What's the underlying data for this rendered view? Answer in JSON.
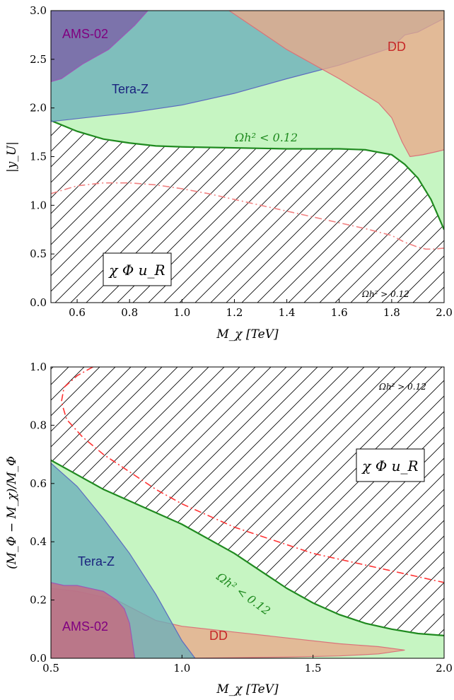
{
  "chart_data": [
    {
      "type": "area",
      "xlabel": "M_χ [TeV]",
      "ylabel": "|y_U|",
      "xlim": [
        0.5,
        2.0
      ],
      "ylim": [
        0.0,
        3.0
      ],
      "xticks": [
        "0.6",
        "0.8",
        "1.0",
        "1.2",
        "1.4",
        "1.6",
        "1.8",
        "2.0"
      ],
      "yticks": [
        "0.0",
        "0.5",
        "1.0",
        "1.5",
        "2.0",
        "2.5",
        "3.0"
      ],
      "model_label": "χ Φ u_R",
      "regions": [
        {
          "name": "AMS-02",
          "color": "#7b5ea7",
          "text_color": "#800080",
          "boundary": {
            "x": [
              0.5,
              0.54,
              0.62,
              0.72,
              0.82,
              0.87
            ],
            "y": [
              2.27,
              2.3,
              2.45,
              2.6,
              2.85,
              3.0
            ]
          }
        },
        {
          "name": "Tera-Z",
          "color": "#6aaeba",
          "text_color": "#1a237e",
          "boundary": {
            "x": [
              0.5,
              0.8,
              1.0,
              1.2,
              1.4,
              1.6,
              1.8,
              1.85,
              1.9,
              1.95,
              2.0
            ],
            "y": [
              1.86,
              1.95,
              2.03,
              2.15,
              2.3,
              2.44,
              2.62,
              2.75,
              2.78,
              2.85,
              2.92
            ]
          }
        },
        {
          "name": "DD",
          "color": "#e9a98a",
          "text_color": "#c62828",
          "boundary": {
            "x": [
              1.18,
              1.4,
              1.6,
              1.75,
              1.8,
              1.84,
              1.87,
              1.92,
              1.97,
              2.0
            ],
            "y": [
              3.0,
              2.6,
              2.3,
              2.05,
              1.9,
              1.65,
              1.5,
              1.52,
              1.55,
              1.57
            ]
          }
        },
        {
          "name": "relic",
          "color": "#c6f5c2",
          "boundary": {
            "x": [
              0.5,
              0.6,
              0.7,
              0.8,
              0.9,
              1.0,
              1.2,
              1.4,
              1.6,
              1.7,
              1.8,
              1.85,
              1.9,
              1.95,
              2.0
            ],
            "y": [
              1.87,
              1.76,
              1.68,
              1.64,
              1.61,
              1.6,
              1.59,
              1.58,
              1.58,
              1.57,
              1.52,
              1.42,
              1.28,
              1.06,
              0.75
            ]
          }
        }
      ],
      "curve": {
        "name": "dash-dot",
        "color": "#f08080",
        "x": [
          0.5,
          0.6,
          0.7,
          0.8,
          0.9,
          1.0,
          1.1,
          1.2,
          1.3,
          1.4,
          1.5,
          1.6,
          1.7,
          1.8,
          1.85,
          1.9,
          1.93,
          1.96,
          2.0
        ],
        "y": [
          1.12,
          1.2,
          1.23,
          1.23,
          1.21,
          1.17,
          1.12,
          1.06,
          1.0,
          0.94,
          0.88,
          0.82,
          0.76,
          0.69,
          0.62,
          0.57,
          0.55,
          0.55,
          0.56
        ]
      },
      "annotations": {
        "relic_lt": "Ωh² < 0.12",
        "relic_gt": "Ωh² > 0.12"
      }
    },
    {
      "type": "area",
      "xlabel": "M_χ [TeV]",
      "ylabel": "(M_Φ − M_χ)/M_Φ",
      "xlim": [
        0.5,
        2.0
      ],
      "ylim": [
        0.0,
        1.0
      ],
      "xticks": [
        "0.5",
        "1.0",
        "1.5",
        "2.0"
      ],
      "yticks": [
        "0.0",
        "0.2",
        "0.4",
        "0.6",
        "0.8",
        "1.0"
      ],
      "model_label": "χ Φ u_R",
      "regions": [
        {
          "name": "AMS-02",
          "color": "#c9667e",
          "text_color": "#800080",
          "boundary": {
            "x": [
              0.5,
              0.55,
              0.6,
              0.7,
              0.75,
              0.78,
              0.8,
              0.81,
              0.82
            ],
            "y": [
              0.26,
              0.25,
              0.25,
              0.23,
              0.2,
              0.17,
              0.12,
              0.06,
              0.0
            ]
          }
        },
        {
          "name": "Tera-Z",
          "color": "#6aaeba",
          "text_color": "#1a237e",
          "boundary": {
            "x": [
              0.5,
              0.6,
              0.7,
              0.8,
              0.9,
              0.95,
              1.0,
              1.05
            ],
            "y": [
              0.67,
              0.59,
              0.48,
              0.36,
              0.22,
              0.14,
              0.06,
              0.0
            ]
          }
        },
        {
          "name": "DD",
          "color": "#e9a98a",
          "text_color": "#c62828",
          "boundary": {
            "x": [
              0.5,
              0.6,
              0.75,
              0.9,
              1.0,
              1.2,
              1.4,
              1.6,
              1.75,
              1.85,
              1.75,
              1.6,
              1.4,
              1.2,
              1.0,
              0.8,
              0.5
            ],
            "y": [
              0.24,
              0.23,
              0.2,
              0.13,
              0.11,
              0.09,
              0.07,
              0.05,
              0.04,
              0.028,
              0.015,
              0.008,
              0.004,
              0.002,
              0.0,
              0.0,
              0.0
            ]
          }
        },
        {
          "name": "relic",
          "color": "#c6f5c2",
          "boundary": {
            "x": [
              0.5,
              0.6,
              0.7,
              0.8,
              0.9,
              1.0,
              1.1,
              1.2,
              1.3,
              1.4,
              1.5,
              1.6,
              1.7,
              1.8,
              1.9,
              2.0
            ],
            "y": [
              0.68,
              0.63,
              0.58,
              0.54,
              0.5,
              0.46,
              0.41,
              0.36,
              0.3,
              0.24,
              0.19,
              0.15,
              0.12,
              0.1,
              0.085,
              0.078
            ]
          }
        }
      ],
      "curve": {
        "name": "dash-dot",
        "color": "#ff3333",
        "x": [
          0.66,
          0.6,
          0.55,
          0.54,
          0.56,
          0.62,
          0.7,
          0.8,
          0.9,
          1.0,
          1.1,
          1.2,
          1.3,
          1.4,
          1.5,
          1.6,
          1.7,
          1.8,
          1.9,
          2.0
        ],
        "y": [
          1.0,
          0.97,
          0.93,
          0.88,
          0.82,
          0.76,
          0.7,
          0.64,
          0.58,
          0.53,
          0.49,
          0.45,
          0.42,
          0.39,
          0.36,
          0.34,
          0.32,
          0.3,
          0.28,
          0.26
        ]
      },
      "annotations": {
        "relic_lt": "Ωh² < 0.12",
        "relic_gt": "Ωh² > 0.12"
      }
    }
  ]
}
